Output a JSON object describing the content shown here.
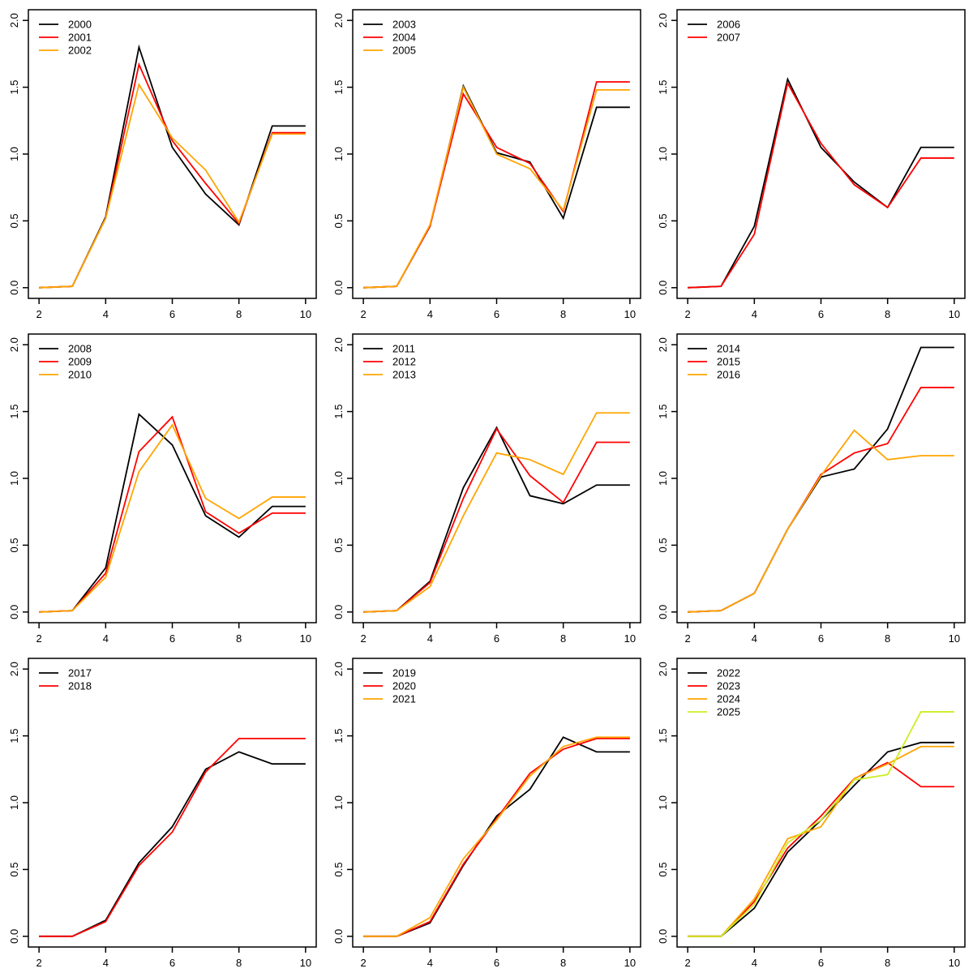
{
  "page": {
    "background_color": "#FFFFFF",
    "grid_rows": 3,
    "grid_cols": 3
  },
  "axes": {
    "x_tick_labels": [
      "2",
      "4",
      "6",
      "8",
      "10"
    ],
    "y_tick_labels": [
      "0.0",
      "0.5",
      "1.0",
      "1.5",
      "2.0"
    ],
    "xlim": [
      2,
      10
    ],
    "ylim": [
      0,
      2
    ],
    "grid": "off"
  },
  "palette": {
    "black": "#000000",
    "red": "#FF0000",
    "orange": "#FFA500",
    "yellowgreen": "#CCEE22"
  },
  "chart_data": [
    {
      "type": "line",
      "panel": "top-left",
      "x": [
        2,
        3,
        4,
        5,
        6,
        7,
        8,
        9,
        10
      ],
      "xlim": [
        2,
        10
      ],
      "ylim": [
        0,
        2
      ],
      "legend_position": "topleft",
      "series": [
        {
          "name": "2000",
          "color": "#000000",
          "values": [
            0.0,
            0.01,
            0.53,
            1.8,
            1.05,
            0.7,
            0.47,
            1.21,
            1.21
          ]
        },
        {
          "name": "2001",
          "color": "#FF0000",
          "values": [
            0.0,
            0.01,
            0.52,
            1.67,
            1.1,
            0.78,
            0.48,
            1.16,
            1.16
          ]
        },
        {
          "name": "2002",
          "color": "#FFA500",
          "values": [
            0.0,
            0.01,
            0.52,
            1.52,
            1.12,
            0.88,
            0.49,
            1.15,
            1.15
          ]
        }
      ]
    },
    {
      "type": "line",
      "panel": "top-middle",
      "x": [
        2,
        3,
        4,
        5,
        6,
        7,
        8,
        9,
        10
      ],
      "xlim": [
        2,
        10
      ],
      "ylim": [
        0,
        2
      ],
      "legend_position": "topleft",
      "series": [
        {
          "name": "2003",
          "color": "#000000",
          "values": [
            0.0,
            0.01,
            0.46,
            1.51,
            1.01,
            0.94,
            0.52,
            1.35,
            1.35
          ]
        },
        {
          "name": "2004",
          "color": "#FF0000",
          "values": [
            0.0,
            0.01,
            0.46,
            1.45,
            1.05,
            0.93,
            0.57,
            1.54,
            1.54
          ]
        },
        {
          "name": "2005",
          "color": "#FFA500",
          "values": [
            0.0,
            0.01,
            0.47,
            1.5,
            1.0,
            0.89,
            0.58,
            1.48,
            1.48
          ]
        }
      ]
    },
    {
      "type": "line",
      "panel": "top-right",
      "x": [
        2,
        3,
        4,
        5,
        6,
        7,
        8,
        9,
        10
      ],
      "xlim": [
        2,
        10
      ],
      "ylim": [
        0,
        2
      ],
      "legend_position": "topleft",
      "series": [
        {
          "name": "2006",
          "color": "#000000",
          "values": [
            0.0,
            0.01,
            0.46,
            1.56,
            1.05,
            0.79,
            0.6,
            1.05,
            1.05
          ]
        },
        {
          "name": "2007",
          "color": "#FF0000",
          "values": [
            0.0,
            0.01,
            0.4,
            1.53,
            1.08,
            0.77,
            0.6,
            0.97,
            0.97
          ]
        }
      ]
    },
    {
      "type": "line",
      "panel": "middle-left",
      "x": [
        2,
        3,
        4,
        5,
        6,
        7,
        8,
        9,
        10
      ],
      "xlim": [
        2,
        10
      ],
      "ylim": [
        0,
        2
      ],
      "legend_position": "topleft",
      "series": [
        {
          "name": "2008",
          "color": "#000000",
          "values": [
            0.0,
            0.01,
            0.33,
            1.48,
            1.25,
            0.72,
            0.56,
            0.79,
            0.79
          ]
        },
        {
          "name": "2009",
          "color": "#FF0000",
          "values": [
            0.0,
            0.01,
            0.29,
            1.2,
            1.46,
            0.75,
            0.59,
            0.74,
            0.74
          ]
        },
        {
          "name": "2010",
          "color": "#FFA500",
          "values": [
            0.0,
            0.01,
            0.26,
            1.05,
            1.4,
            0.85,
            0.7,
            0.86,
            0.86
          ]
        }
      ]
    },
    {
      "type": "line",
      "panel": "middle-middle",
      "x": [
        2,
        3,
        4,
        5,
        6,
        7,
        8,
        9,
        10
      ],
      "xlim": [
        2,
        10
      ],
      "ylim": [
        0,
        2
      ],
      "legend_position": "topleft",
      "series": [
        {
          "name": "2011",
          "color": "#000000",
          "values": [
            0.0,
            0.01,
            0.23,
            0.93,
            1.38,
            0.87,
            0.81,
            0.95,
            0.95
          ]
        },
        {
          "name": "2012",
          "color": "#FF0000",
          "values": [
            0.0,
            0.01,
            0.22,
            0.85,
            1.37,
            1.02,
            0.82,
            1.27,
            1.27
          ]
        },
        {
          "name": "2013",
          "color": "#FFA500",
          "values": [
            0.0,
            0.01,
            0.19,
            0.72,
            1.19,
            1.14,
            1.03,
            1.49,
            1.49
          ]
        }
      ]
    },
    {
      "type": "line",
      "panel": "middle-right",
      "x": [
        2,
        3,
        4,
        5,
        6,
        7,
        8,
        9,
        10
      ],
      "xlim": [
        2,
        10
      ],
      "ylim": [
        0,
        2
      ],
      "legend_position": "topleft",
      "series": [
        {
          "name": "2014",
          "color": "#000000",
          "values": [
            0.0,
            0.01,
            0.14,
            0.62,
            1.01,
            1.07,
            1.37,
            1.98,
            1.98
          ]
        },
        {
          "name": "2015",
          "color": "#FF0000",
          "values": [
            0.0,
            0.01,
            0.14,
            0.62,
            1.03,
            1.19,
            1.26,
            1.68,
            1.68
          ]
        },
        {
          "name": "2016",
          "color": "#FFA500",
          "values": [
            0.0,
            0.01,
            0.14,
            0.62,
            1.02,
            1.36,
            1.14,
            1.17,
            1.17
          ]
        }
      ]
    },
    {
      "type": "line",
      "panel": "bottom-left",
      "x": [
        2,
        3,
        4,
        5,
        6,
        7,
        8,
        9,
        10
      ],
      "xlim": [
        2,
        10
      ],
      "ylim": [
        0,
        2
      ],
      "legend_position": "topleft",
      "series": [
        {
          "name": "2017",
          "color": "#000000",
          "values": [
            0.0,
            0.0,
            0.12,
            0.55,
            0.82,
            1.25,
            1.38,
            1.29,
            1.29
          ]
        },
        {
          "name": "2018",
          "color": "#FF0000",
          "values": [
            0.0,
            0.0,
            0.11,
            0.53,
            0.78,
            1.23,
            1.48,
            1.48,
            1.48
          ]
        }
      ]
    },
    {
      "type": "line",
      "panel": "bottom-middle",
      "x": [
        2,
        3,
        4,
        5,
        6,
        7,
        8,
        9,
        10
      ],
      "xlim": [
        2,
        10
      ],
      "ylim": [
        0,
        2
      ],
      "legend_position": "topleft",
      "series": [
        {
          "name": "2019",
          "color": "#000000",
          "values": [
            0.0,
            0.0,
            0.1,
            0.53,
            0.9,
            1.1,
            1.49,
            1.38,
            1.38
          ]
        },
        {
          "name": "2020",
          "color": "#FF0000",
          "values": [
            0.0,
            0.0,
            0.11,
            0.54,
            0.88,
            1.22,
            1.4,
            1.48,
            1.48
          ]
        },
        {
          "name": "2021",
          "color": "#FFA500",
          "values": [
            0.0,
            0.0,
            0.14,
            0.58,
            0.87,
            1.2,
            1.42,
            1.49,
            1.49
          ]
        }
      ]
    },
    {
      "type": "line",
      "panel": "bottom-right",
      "x": [
        2,
        3,
        4,
        5,
        6,
        7,
        8,
        9,
        10
      ],
      "xlim": [
        2,
        10
      ],
      "ylim": [
        0,
        2
      ],
      "legend_position": "topleft",
      "series": [
        {
          "name": "2022",
          "color": "#000000",
          "values": [
            0.0,
            0.0,
            0.21,
            0.63,
            0.87,
            1.13,
            1.38,
            1.45,
            1.45
          ]
        },
        {
          "name": "2023",
          "color": "#FF0000",
          "values": [
            0.0,
            0.0,
            0.26,
            0.66,
            0.9,
            1.18,
            1.3,
            1.12,
            1.12
          ]
        },
        {
          "name": "2024",
          "color": "#FFA500",
          "values": [
            0.0,
            0.0,
            0.28,
            0.73,
            0.82,
            1.18,
            1.29,
            1.42,
            1.42
          ]
        },
        {
          "name": "2025",
          "color": "#CCEE22",
          "values": [
            0.0,
            0.0,
            0.24,
            0.7,
            0.87,
            1.17,
            1.21,
            1.68,
            1.68
          ]
        }
      ]
    }
  ]
}
